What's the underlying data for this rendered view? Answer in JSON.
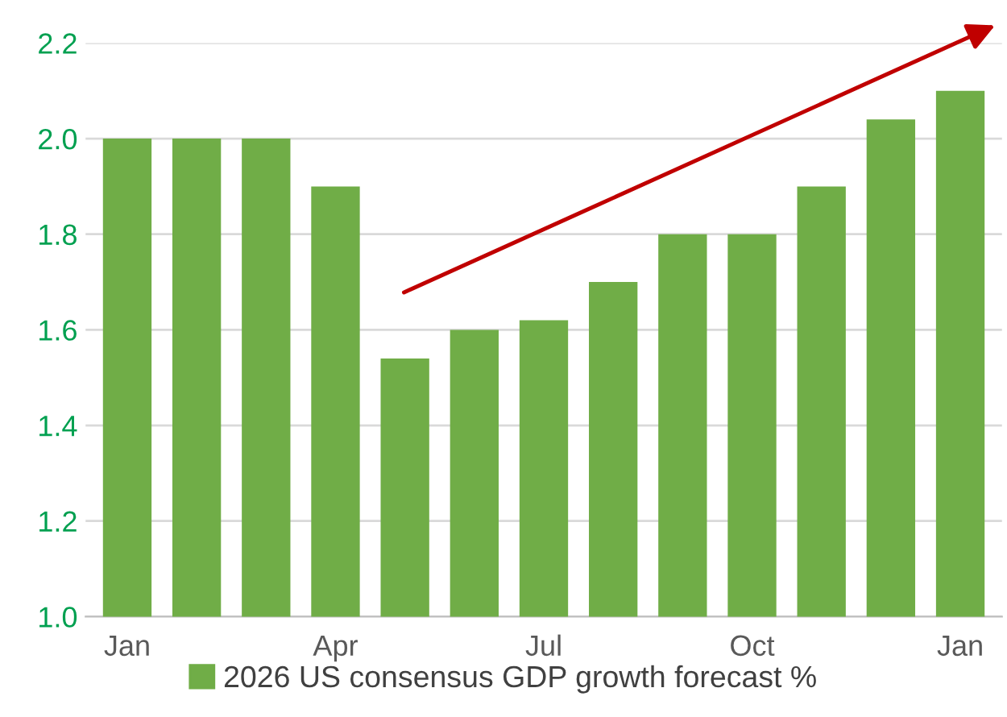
{
  "chart_data": {
    "type": "bar",
    "categories": [
      "Jan",
      null,
      null,
      "Apr",
      null,
      null,
      "Jul",
      null,
      null,
      "Oct",
      null,
      null,
      "Jan"
    ],
    "series": [
      {
        "name": "2026 US consensus GDP growth forecast %",
        "color": "#70ad47",
        "values": [
          2.0,
          2.0,
          2.0,
          1.9,
          1.54,
          1.6,
          1.62,
          1.7,
          1.8,
          1.8,
          1.9,
          2.04,
          2.1
        ]
      }
    ],
    "ylim": [
      1.0,
      2.2
    ],
    "yticks": [
      {
        "value": 1.0,
        "label": "1.0"
      },
      1.2,
      1.4,
      1.6,
      1.8,
      {
        "value": 2.0,
        "label": "2.0"
      },
      2.2
    ],
    "grid": "y",
    "legend": "bottom"
  }
}
